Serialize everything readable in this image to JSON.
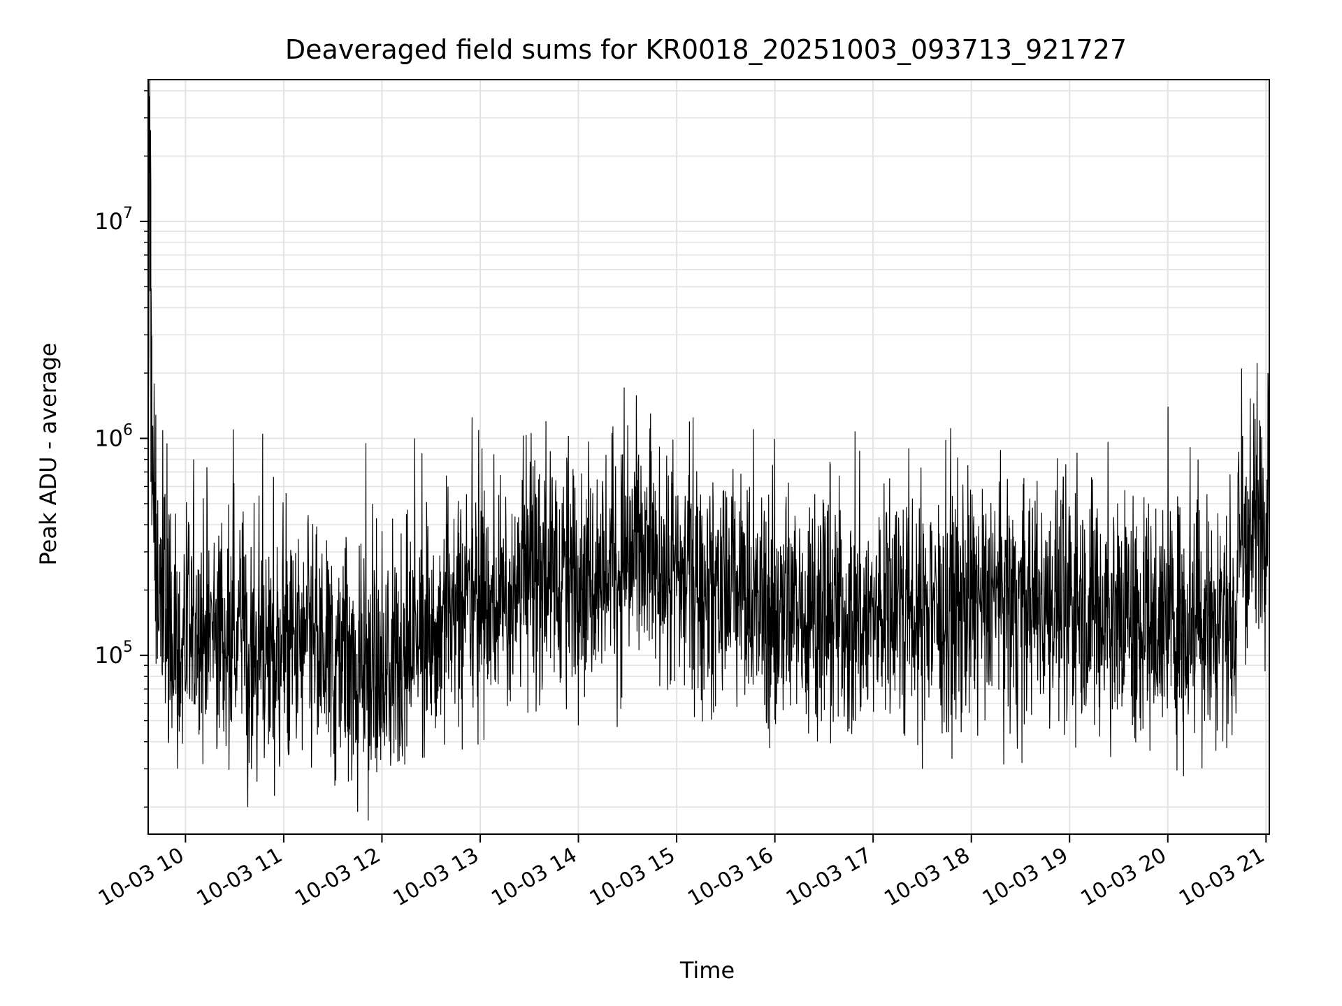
{
  "chart_data": {
    "type": "line",
    "title": "Deaveraged field sums for KR0018_20251003_093713_921727",
    "xlabel": "Time",
    "ylabel": "Peak ADU - average",
    "yscale": "log",
    "xlim": [
      "2025-10-03T09:37:13",
      "2025-10-03T21:02:00"
    ],
    "ylim": [
      15000,
      45000000
    ],
    "grid": true,
    "line_color": "#000000",
    "x_ticks": [
      "10-03 10",
      "10-03 11",
      "10-03 12",
      "10-03 13",
      "10-03 14",
      "10-03 15",
      "10-03 16",
      "10-03 17",
      "10-03 18",
      "10-03 19",
      "10-03 20",
      "10-03 21"
    ],
    "y_ticks": [
      {
        "base": "10",
        "exp": "5",
        "value": 100000
      },
      {
        "base": "10",
        "exp": "6",
        "value": 1000000
      },
      {
        "base": "10",
        "exp": "7",
        "value": 10000000
      }
    ],
    "series": [
      {
        "x": [
          "2025-10-03T09:37:13",
          "2025-10-03T09:38:00",
          "2025-10-03T09:39:00",
          "2025-10-03T09:40:00",
          "2025-10-03T09:42:00",
          "2025-10-03T09:45:00",
          "2025-10-03T09:50:00",
          "2025-10-03T09:55:00",
          "2025-10-03T10:00:00",
          "2025-10-03T10:15:00",
          "2025-10-03T10:30:00",
          "2025-10-03T10:45:00",
          "2025-10-03T11:00:00",
          "2025-10-03T11:15:00",
          "2025-10-03T11:30:00",
          "2025-10-03T11:45:00",
          "2025-10-03T12:00:00",
          "2025-10-03T12:15:00",
          "2025-10-03T12:30:00",
          "2025-10-03T12:45:00",
          "2025-10-03T13:00:00",
          "2025-10-03T13:15:00",
          "2025-10-03T13:30:00",
          "2025-10-03T13:45:00",
          "2025-10-03T14:00:00",
          "2025-10-03T14:15:00",
          "2025-10-03T14:30:00",
          "2025-10-03T14:45:00",
          "2025-10-03T15:00:00",
          "2025-10-03T15:15:00",
          "2025-10-03T15:30:00",
          "2025-10-03T15:45:00",
          "2025-10-03T16:00:00",
          "2025-10-03T16:15:00",
          "2025-10-03T16:30:00",
          "2025-10-03T16:45:00",
          "2025-10-03T17:00:00",
          "2025-10-03T17:15:00",
          "2025-10-03T17:30:00",
          "2025-10-03T17:45:00",
          "2025-10-03T18:00:00",
          "2025-10-03T18:15:00",
          "2025-10-03T18:30:00",
          "2025-10-03T18:45:00",
          "2025-10-03T19:00:00",
          "2025-10-03T19:15:00",
          "2025-10-03T19:30:00",
          "2025-10-03T19:45:00",
          "2025-10-03T20:00:00",
          "2025-10-03T20:15:00",
          "2025-10-03T20:30:00",
          "2025-10-03T20:42:00",
          "2025-10-03T20:45:00",
          "2025-10-03T20:50:00",
          "2025-10-03T20:55:00",
          "2025-10-03T21:00:00",
          "2025-10-03T21:02:00"
        ],
        "y": [
          300000,
          30000000,
          6000000,
          500000,
          300000,
          200000,
          150000,
          120000,
          110000,
          130000,
          140000,
          110000,
          100000,
          105000,
          95000,
          90000,
          80000,
          110000,
          140000,
          160000,
          170000,
          200000,
          230000,
          250000,
          240000,
          260000,
          270000,
          250000,
          230000,
          220000,
          200000,
          180000,
          160000,
          170000,
          165000,
          155000,
          150000,
          165000,
          170000,
          175000,
          180000,
          185000,
          175000,
          170000,
          165000,
          170000,
          160000,
          150000,
          150000,
          150000,
          150000,
          155000,
          330000,
          380000,
          400000,
          430000,
          500000
        ],
        "spikes": [
          {
            "x": "2025-10-03T10:05:00",
            "y": 800000
          },
          {
            "x": "2025-10-03T10:29:00",
            "y": 1100000
          },
          {
            "x": "2025-10-03T10:47:00",
            "y": 1050000
          },
          {
            "x": "2025-10-03T11:50:00",
            "y": 950000
          },
          {
            "x": "2025-10-03T12:20:00",
            "y": 1000000
          },
          {
            "x": "2025-10-03T12:55:00",
            "y": 1250000
          },
          {
            "x": "2025-10-03T13:40:00",
            "y": 1200000
          },
          {
            "x": "2025-10-03T14:30:00",
            "y": 1150000
          },
          {
            "x": "2025-10-03T15:10:00",
            "y": 1250000
          },
          {
            "x": "2025-10-03T20:00:00",
            "y": 1400000
          },
          {
            "x": "2025-10-03T20:45:00",
            "y": 2100000
          },
          {
            "x": "2025-10-03T21:01:00",
            "y": 2000000
          },
          {
            "x": "2025-10-03T10:38:00",
            "y": 20000
          },
          {
            "x": "2025-10-03T11:45:00",
            "y": 19000
          },
          {
            "x": "2025-10-03T17:30:00",
            "y": 30000
          },
          {
            "x": "2025-10-03T19:25:00",
            "y": 34000
          }
        ]
      }
    ]
  }
}
